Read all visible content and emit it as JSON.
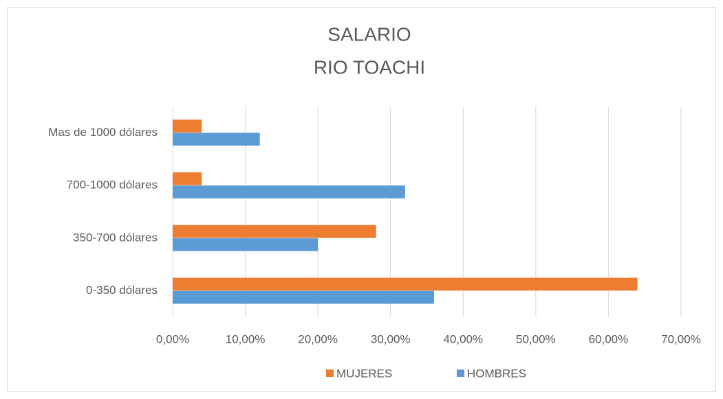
{
  "chart_data": {
    "type": "bar",
    "orientation": "horizontal",
    "title": "SALARIO",
    "subtitle": "RIO TOACHI",
    "categories": [
      "0-350 dólares",
      "350-700 dólares",
      "700-1000 dólares",
      "Mas de 1000 dólares"
    ],
    "series": [
      {
        "name": "MUJERES",
        "color": "#ed7d31",
        "values": [
          64,
          28,
          4,
          4
        ]
      },
      {
        "name": "HOMBRES",
        "color": "#5b9bd5",
        "values": [
          36,
          20,
          32,
          12
        ]
      }
    ],
    "xlim": [
      0,
      70
    ],
    "xticks": [
      {
        "value": 0,
        "label": "0,00%"
      },
      {
        "value": 10,
        "label": "10,00%"
      },
      {
        "value": 20,
        "label": "20,00%"
      },
      {
        "value": 30,
        "label": "30,00%"
      },
      {
        "value": 40,
        "label": "40,00%"
      },
      {
        "value": 50,
        "label": "50,00%"
      },
      {
        "value": 60,
        "label": "60,00%"
      },
      {
        "value": 70,
        "label": "70,00%"
      }
    ],
    "grid": true,
    "legend": "bottom"
  }
}
